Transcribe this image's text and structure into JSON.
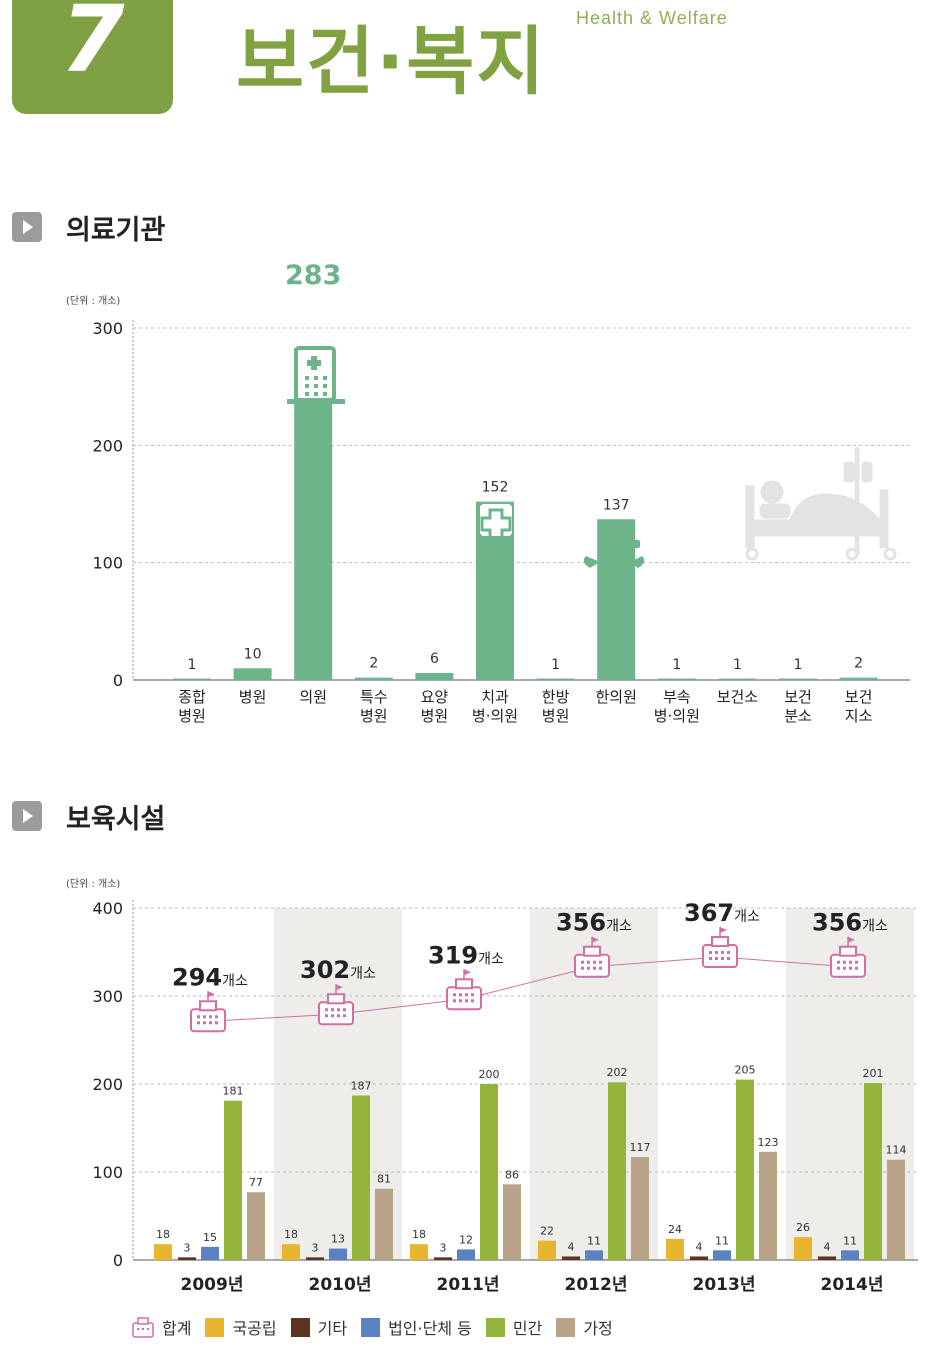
{
  "header": {
    "chapter_number": "7",
    "title": "보건·복지",
    "subtitle": "Health & Welfare"
  },
  "sections": {
    "medical": {
      "title": "의료기관"
    },
    "childcare": {
      "title": "보육시설"
    }
  },
  "chart_data": [
    {
      "type": "bar",
      "unit_label": "(단위 : 개소)",
      "categories": [
        [
          "종합",
          "병원"
        ],
        [
          "병원"
        ],
        [
          "의원"
        ],
        [
          "특수",
          "병원"
        ],
        [
          "요양",
          "병원"
        ],
        [
          "치과",
          "병·의원"
        ],
        [
          "한방",
          "병원"
        ],
        [
          "한의원"
        ],
        [
          "부속",
          "병·의원"
        ],
        [
          "보건소"
        ],
        [
          "보건",
          "분소"
        ],
        [
          "보건",
          "지소"
        ]
      ],
      "values": [
        1,
        10,
        283,
        2,
        6,
        152,
        1,
        137,
        1,
        1,
        1,
        2
      ],
      "yticks": [
        0,
        100,
        200,
        300
      ],
      "ylim": [
        0,
        300
      ],
      "color": "#6db48a",
      "grid": true
    },
    {
      "type": "bar",
      "unit_label": "(단위 : 개소)",
      "categories": [
        "2009년",
        "2010년",
        "2011년",
        "2012년",
        "2013년",
        "2014년"
      ],
      "series": [
        {
          "name": "국공립",
          "color": "#e8b530",
          "values": [
            18,
            18,
            18,
            22,
            24,
            26
          ]
        },
        {
          "name": "기타",
          "color": "#5a3522",
          "values": [
            3,
            3,
            3,
            4,
            4,
            4
          ]
        },
        {
          "name": "법인·단체 등",
          "color": "#5b82c0",
          "values": [
            15,
            13,
            12,
            11,
            11,
            11
          ]
        },
        {
          "name": "민간",
          "color": "#94b43a",
          "values": [
            181,
            187,
            200,
            202,
            205,
            201
          ]
        },
        {
          "name": "가정",
          "color": "#b8a488",
          "values": [
            77,
            81,
            86,
            117,
            123,
            114
          ]
        }
      ],
      "total": {
        "name": "합계",
        "color": "#d16fa5",
        "values": [
          294,
          302,
          319,
          356,
          367,
          356
        ],
        "suffix": "개소"
      },
      "yticks": [
        0,
        100,
        200,
        300,
        400
      ],
      "ylim": [
        0,
        400
      ],
      "grid": true,
      "shaded_groups": [
        1,
        3,
        5
      ],
      "legend_position": "bottom"
    }
  ]
}
